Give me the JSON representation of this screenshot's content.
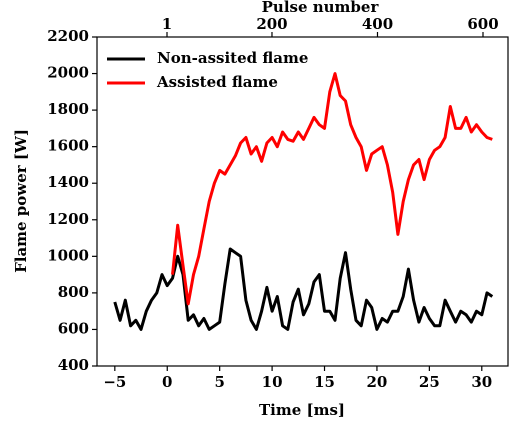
{
  "chart_data": {
    "type": "line",
    "xlabel": "Time [ms]",
    "ylabel": "Flame power [W]",
    "x2label": "Pulse number",
    "x": [
      -5,
      -4.5,
      -4,
      -3.5,
      -3,
      -2.5,
      -2,
      -1.5,
      -1,
      -0.5,
      0,
      0.5,
      1,
      1.5,
      2,
      2.5,
      3,
      3.5,
      4,
      4.5,
      5,
      5.5,
      6,
      6.5,
      7,
      7.5,
      8,
      8.5,
      9,
      9.5,
      10,
      10.5,
      11,
      11.5,
      12,
      12.5,
      13,
      13.5,
      14,
      14.5,
      15,
      15.5,
      16,
      16.5,
      17,
      17.5,
      18,
      18.5,
      19,
      19.5,
      20,
      20.5,
      21,
      21.5,
      22,
      22.5,
      23,
      23.5,
      24,
      24.5,
      25,
      25.5,
      26,
      26.5,
      27,
      27.5,
      28,
      28.5,
      29,
      29.5,
      30,
      30.5,
      31
    ],
    "series": [
      {
        "name": "Non-assited flame",
        "color": "#000000",
        "values": [
          750,
          650,
          760,
          620,
          650,
          600,
          700,
          760,
          800,
          900,
          840,
          880,
          1000,
          900,
          650,
          680,
          620,
          660,
          600,
          620,
          640,
          850,
          1040,
          1020,
          1000,
          760,
          650,
          600,
          700,
          830,
          700,
          780,
          620,
          600,
          750,
          820,
          680,
          740,
          860,
          900,
          700,
          700,
          650,
          880,
          1020,
          820,
          650,
          620,
          760,
          720,
          600,
          660,
          640,
          700,
          700,
          780,
          930,
          760,
          640,
          720,
          660,
          620,
          620,
          760,
          700,
          640,
          700,
          680,
          640,
          700,
          680,
          800,
          780
        ]
      },
      {
        "name": "Assisted flame",
        "color": "#ff0000",
        "values": [
          null,
          null,
          null,
          null,
          null,
          null,
          null,
          null,
          null,
          null,
          null,
          900,
          1170,
          950,
          740,
          900,
          1000,
          1150,
          1300,
          1400,
          1470,
          1450,
          1500,
          1550,
          1620,
          1650,
          1560,
          1600,
          1520,
          1620,
          1650,
          1600,
          1680,
          1640,
          1630,
          1680,
          1640,
          1700,
          1760,
          1720,
          1700,
          1900,
          2000,
          1880,
          1850,
          1720,
          1650,
          1600,
          1470,
          1560,
          1580,
          1600,
          1500,
          1350,
          1120,
          1300,
          1420,
          1500,
          1530,
          1420,
          1530,
          1580,
          1600,
          1650,
          1820,
          1700,
          1700,
          1760,
          1680,
          1720,
          1680,
          1650,
          1640
        ]
      }
    ],
    "xlim": [
      -6.7,
      32.5
    ],
    "xticks": [
      {
        "value": -5,
        "label": "−5"
      },
      0,
      5,
      10,
      15,
      20,
      25,
      30
    ],
    "x2lim": [
      -131.7,
      647.4
    ],
    "x2ticks": [
      1,
      200,
      400,
      600
    ],
    "ylim": [
      400,
      2200
    ],
    "yticks": [
      400,
      600,
      800,
      1000,
      1200,
      1400,
      1600,
      1800,
      2000,
      2200
    ],
    "legend": "upper left"
  }
}
